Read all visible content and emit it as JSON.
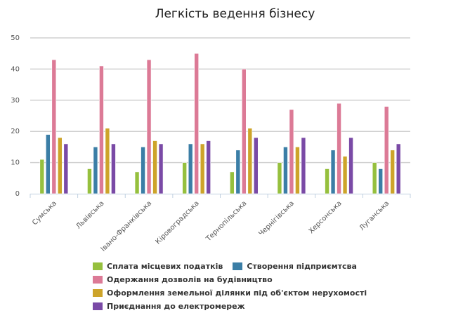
{
  "chart_data": {
    "type": "bar",
    "title": "Легкість ведення бізнесу",
    "xlabel": "",
    "ylabel": "",
    "ylim": [
      0,
      50
    ],
    "yticks": [
      0,
      10,
      20,
      30,
      40,
      50
    ],
    "grid": true,
    "legend_position": "bottom",
    "categories": [
      "Сумська",
      "Львівська",
      "Івано-Франківська",
      "Кіровоградська",
      "Тернопільська",
      "Чернігівська",
      "Херсонська",
      "Луганська"
    ],
    "series": [
      {
        "name": "Сплата місцевих податків",
        "color": "#96c03e",
        "values": [
          11,
          8,
          7,
          10,
          7,
          10,
          8,
          10
        ]
      },
      {
        "name": "Створення підприємтсва",
        "color": "#3b7ea6",
        "values": [
          19,
          15,
          15,
          16,
          14,
          15,
          14,
          8
        ]
      },
      {
        "name": "Одержання дозволів на будівництво",
        "color": "#dc7a96",
        "values": [
          43,
          41,
          43,
          45,
          40,
          27,
          29,
          28
        ]
      },
      {
        "name": "Оформлення земельної ділянки під об'єктом нерухомості",
        "color": "#cda42a",
        "values": [
          18,
          21,
          17,
          16,
          21,
          15,
          12,
          14
        ]
      },
      {
        "name": "Приєднання до електромереж",
        "color": "#7a4aa6",
        "values": [
          16,
          16,
          16,
          17,
          18,
          18,
          18,
          16
        ]
      }
    ]
  },
  "legend": {
    "rows": [
      [
        0,
        1
      ],
      [
        2
      ],
      [
        3
      ],
      [
        4
      ]
    ]
  }
}
